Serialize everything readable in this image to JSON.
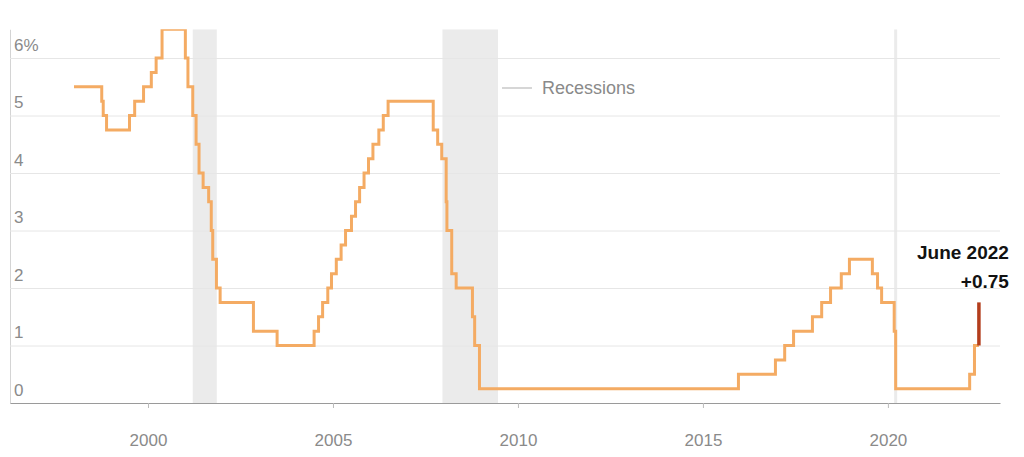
{
  "chart_data": {
    "type": "line",
    "xlim": [
      1996.27,
      2023.03
    ],
    "xticks": [
      2000,
      2005,
      2010,
      2015,
      2020
    ],
    "ylim": [
      0,
      6.5
    ],
    "yticks": [
      0,
      1,
      2,
      3,
      4,
      5,
      {
        "value": 6,
        "label": "6%"
      }
    ],
    "grid": true,
    "recession_label": "Recessions",
    "recessions": [
      [
        2001.21,
        2001.86
      ],
      [
        2007.96,
        2009.46
      ],
      [
        2020.17,
        2020.25
      ]
    ],
    "series": [
      {
        "color": "#f4ab63",
        "line_style": "step",
        "x": [
          1998.0,
          1998.75,
          1998.79,
          1998.88,
          1999.5,
          1999.64,
          1999.88,
          2000.09,
          2000.22,
          2000.38,
          2001.01,
          2001.08,
          2001.21,
          2001.3,
          2001.38,
          2001.49,
          2001.64,
          2001.71,
          2001.75,
          2001.85,
          2001.95,
          2002.85,
          2003.49,
          2004.49,
          2004.61,
          2004.72,
          2004.86,
          2004.96,
          2005.09,
          2005.22,
          2005.34,
          2005.5,
          2005.61,
          2005.72,
          2005.84,
          2005.96,
          2006.08,
          2006.24,
          2006.36,
          2006.49,
          2007.71,
          2007.83,
          2007.94,
          2008.06,
          2008.08,
          2008.21,
          2008.33,
          2008.77,
          2008.83,
          2008.96,
          2015.96,
          2016.96,
          2017.21,
          2017.45,
          2017.96,
          2018.21,
          2018.45,
          2018.74,
          2018.96,
          2019.58,
          2019.72,
          2019.83,
          2020.17,
          2020.21,
          2022.21,
          2022.34,
          2022.46
        ],
        "values": [
          5.5,
          5.25,
          5.0,
          4.75,
          5.0,
          5.25,
          5.5,
          5.75,
          6.0,
          6.5,
          6.0,
          5.5,
          5.0,
          4.5,
          4.0,
          3.75,
          3.5,
          3.0,
          2.5,
          2.0,
          1.75,
          1.25,
          1.0,
          1.25,
          1.5,
          1.75,
          2.0,
          2.25,
          2.5,
          2.75,
          3.0,
          3.25,
          3.5,
          3.75,
          4.0,
          4.25,
          4.5,
          4.75,
          5.0,
          5.25,
          4.75,
          4.5,
          4.25,
          3.5,
          3.0,
          2.25,
          2.0,
          1.5,
          1.0,
          0.25,
          0.5,
          0.75,
          1.0,
          1.25,
          1.5,
          1.75,
          2.0,
          2.25,
          2.5,
          2.25,
          2.0,
          1.75,
          1.25,
          0.25,
          0.5,
          1.0,
          1.0
        ]
      },
      {
        "color": "#b33d1c",
        "line_style": "solid",
        "x": [
          2022.46,
          2022.46
        ],
        "values": [
          1.0,
          1.75
        ]
      }
    ],
    "annotations": [
      {
        "text": "June 2022"
      },
      {
        "text": "+0.75"
      }
    ]
  }
}
